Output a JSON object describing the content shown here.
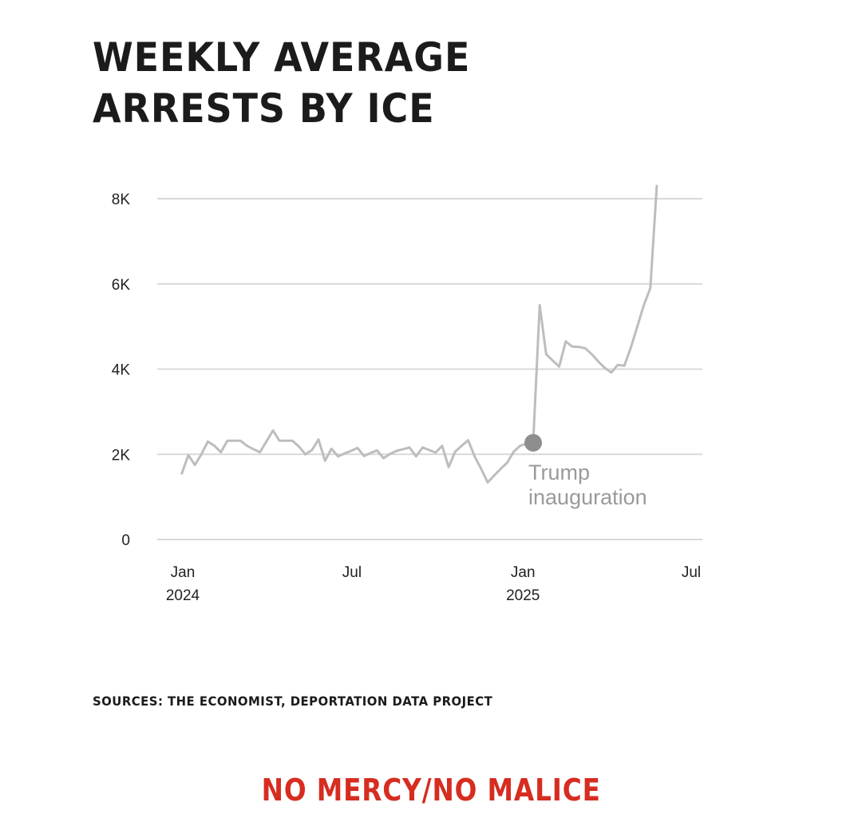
{
  "title_lines": [
    "WEEKLY AVERAGE",
    "ARRESTS BY ICE"
  ],
  "sources": "SOURCES: THE ECONOMIST, DEPORTATION DATA PROJECT",
  "brand": "NO MERCY/NO MALICE",
  "colors": {
    "line": "#bdbdbd",
    "marker": "#8e8e8e",
    "grid": "#d9d9d9",
    "annotation": "#9a9a9a",
    "brand": "#d62d20",
    "text": "#1b1b1b"
  },
  "chart_data": {
    "type": "line",
    "title": "WEEKLY AVERAGE ARRESTS BY ICE",
    "xlabel": "",
    "ylabel": "",
    "ylim": [
      0,
      8000
    ],
    "yticks": [
      {
        "value": 0,
        "label": "0"
      },
      {
        "value": 2000,
        "label": "2K"
      },
      {
        "value": 4000,
        "label": "4K"
      },
      {
        "value": 6000,
        "label": "6K"
      },
      {
        "value": 8000,
        "label": "8K"
      }
    ],
    "xlim": [
      "2024-01-01",
      "2025-07-01"
    ],
    "xticks": [
      {
        "date": "2024-01-01",
        "lines": [
          "Jan",
          "2024"
        ]
      },
      {
        "date": "2024-07-01",
        "lines": [
          "Jul"
        ]
      },
      {
        "date": "2025-01-01",
        "lines": [
          "Jan",
          "2025"
        ]
      },
      {
        "date": "2025-07-01",
        "lines": [
          "Jul"
        ]
      }
    ],
    "grid": true,
    "legend": "none",
    "series": [
      {
        "points": [
          [
            "2023-12-31",
            1550
          ],
          [
            "2024-01-07",
            1980
          ],
          [
            "2024-01-14",
            1750
          ],
          [
            "2024-01-21",
            2000
          ],
          [
            "2024-01-28",
            2300
          ],
          [
            "2024-02-04",
            2200
          ],
          [
            "2024-02-11",
            2050
          ],
          [
            "2024-02-18",
            2320
          ],
          [
            "2024-02-25",
            2320
          ],
          [
            "2024-03-03",
            2320
          ],
          [
            "2024-03-10",
            2200
          ],
          [
            "2024-03-17",
            2120
          ],
          [
            "2024-03-24",
            2050
          ],
          [
            "2024-03-31",
            2300
          ],
          [
            "2024-04-07",
            2560
          ],
          [
            "2024-04-14",
            2320
          ],
          [
            "2024-04-21",
            2320
          ],
          [
            "2024-04-28",
            2320
          ],
          [
            "2024-05-05",
            2180
          ],
          [
            "2024-05-12",
            2000
          ],
          [
            "2024-05-19",
            2100
          ],
          [
            "2024-05-26",
            2350
          ],
          [
            "2024-06-02",
            1850
          ],
          [
            "2024-06-09",
            2130
          ],
          [
            "2024-06-16",
            1950
          ],
          [
            "2024-06-23",
            2020
          ],
          [
            "2024-06-30",
            2080
          ],
          [
            "2024-07-07",
            2150
          ],
          [
            "2024-07-14",
            1960
          ],
          [
            "2024-07-21",
            2030
          ],
          [
            "2024-07-28",
            2090
          ],
          [
            "2024-08-04",
            1910
          ],
          [
            "2024-08-11",
            2010
          ],
          [
            "2024-08-18",
            2080
          ],
          [
            "2024-08-25",
            2120
          ],
          [
            "2024-09-01",
            2160
          ],
          [
            "2024-09-08",
            1950
          ],
          [
            "2024-09-15",
            2160
          ],
          [
            "2024-09-22",
            2100
          ],
          [
            "2024-09-29",
            2040
          ],
          [
            "2024-10-06",
            2200
          ],
          [
            "2024-10-13",
            1700
          ],
          [
            "2024-10-20",
            2060
          ],
          [
            "2024-10-27",
            2200
          ],
          [
            "2024-11-03",
            2330
          ],
          [
            "2024-11-10",
            1950
          ],
          [
            "2024-11-17",
            1660
          ],
          [
            "2024-11-24",
            1340
          ],
          [
            "2024-12-01",
            1500
          ],
          [
            "2024-12-08",
            1660
          ],
          [
            "2024-12-15",
            1800
          ],
          [
            "2024-12-22",
            2060
          ],
          [
            "2024-12-29",
            2200
          ],
          [
            "2025-01-05",
            2250
          ],
          [
            "2025-01-12",
            2270
          ],
          [
            "2025-01-19",
            5500
          ],
          [
            "2025-01-26",
            4350
          ],
          [
            "2025-02-02",
            4200
          ],
          [
            "2025-02-09",
            4060
          ],
          [
            "2025-02-16",
            4650
          ],
          [
            "2025-02-23",
            4530
          ],
          [
            "2025-03-02",
            4520
          ],
          [
            "2025-03-09",
            4490
          ],
          [
            "2025-03-16",
            4350
          ],
          [
            "2025-03-23",
            4180
          ],
          [
            "2025-03-30",
            4030
          ],
          [
            "2025-04-06",
            3920
          ],
          [
            "2025-04-13",
            4100
          ],
          [
            "2025-04-20",
            4080
          ],
          [
            "2025-04-27",
            4500
          ],
          [
            "2025-05-04",
            5000
          ],
          [
            "2025-05-11",
            5500
          ],
          [
            "2025-05-18",
            5900
          ],
          [
            "2025-05-25",
            8300
          ]
        ]
      }
    ],
    "annotations": [
      {
        "date": "2025-01-12",
        "value": 2270,
        "lines": [
          "Trump",
          "inauguration"
        ]
      }
    ]
  }
}
